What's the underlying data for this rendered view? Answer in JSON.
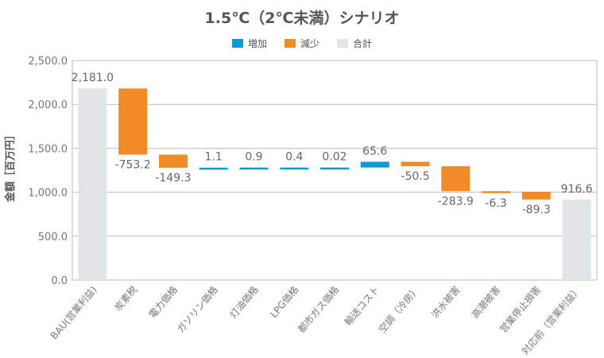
{
  "chart_data": {
    "type": "waterfall",
    "title": "1.5℃（2℃未満）シナリオ",
    "ylabel": "金額［百万円］",
    "xlabel": "",
    "ylim": [
      0,
      2500
    ],
    "yticks": [
      "0.0",
      "500.0",
      "1,000.0",
      "1,500.0",
      "2,000.0",
      "2,500.0"
    ],
    "grid": true,
    "legend_position": "top",
    "legend": [
      {
        "name": "増加",
        "color": "#0a9bd7"
      },
      {
        "name": "減少",
        "color": "#f08c28"
      },
      {
        "name": "合計",
        "color": "#e1e5e5"
      }
    ],
    "categories": [
      "BAU(営業利益)",
      "炭素税",
      "電力価格",
      "ガソリン価格",
      "灯油価格",
      "LPG価格",
      "都市ガス価格",
      "輸送コスト",
      "空調（冷房）",
      "洪水被害",
      "高潮被害",
      "営業停止損害",
      "対応前（営業利益）"
    ],
    "values": [
      2181.0,
      -753.2,
      -149.3,
      1.1,
      0.9,
      0.4,
      0.02,
      65.6,
      -50.5,
      -283.9,
      -6.3,
      -89.3,
      916.6
    ],
    "kinds": [
      "total",
      "delta",
      "delta",
      "delta",
      "delta",
      "delta",
      "delta",
      "delta",
      "delta",
      "delta",
      "delta",
      "delta",
      "total"
    ],
    "value_labels": [
      "2,181.0",
      "-753.2",
      "-149.3",
      "1.1",
      "0.9",
      "0.4",
      "0.02",
      "65.6",
      "-50.5",
      "-283.9",
      "-6.3",
      "-89.3",
      "916.6"
    ]
  }
}
